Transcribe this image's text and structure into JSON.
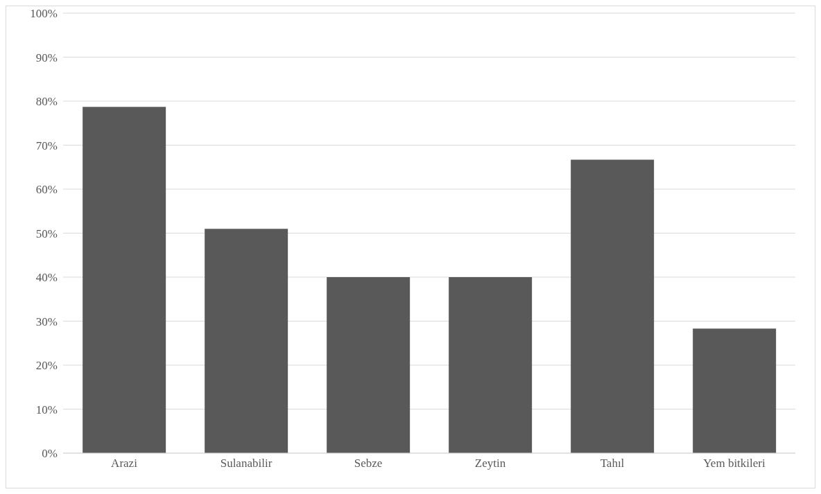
{
  "chart_data": {
    "type": "bar",
    "categories": [
      "Arazi",
      "Sulanabilir",
      "Sebze",
      "Zeytin",
      "Tahıl",
      "Yem bitkileri"
    ],
    "values": [
      78.7,
      51,
      40,
      40,
      66.7,
      28.3
    ],
    "color": "#595959",
    "ylim": [
      0,
      100
    ],
    "yticks": [
      {
        "value": 0,
        "label": "0%"
      },
      {
        "value": 10,
        "label": "10%"
      },
      {
        "value": 20,
        "label": "20%"
      },
      {
        "value": 30,
        "label": "30%"
      },
      {
        "value": 40,
        "label": "40%"
      },
      {
        "value": 50,
        "label": "50%"
      },
      {
        "value": 60,
        "label": "60%"
      },
      {
        "value": 70,
        "label": "70%"
      },
      {
        "value": 80,
        "label": "80%"
      },
      {
        "value": 90,
        "label": "90%"
      },
      {
        "value": 100,
        "label": "100%"
      }
    ],
    "grid": "y"
  }
}
